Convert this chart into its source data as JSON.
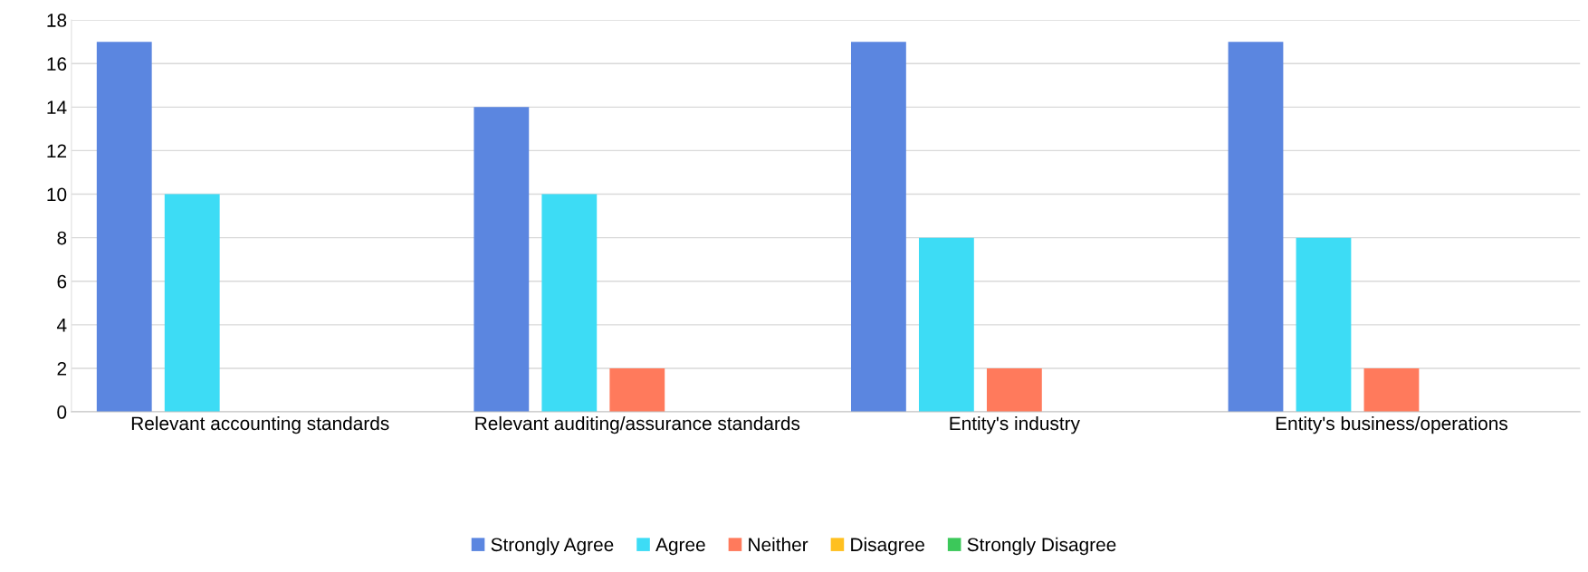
{
  "chart_data": {
    "type": "bar",
    "categories": [
      "Relevant accounting standards",
      "Relevant auditing/assurance standards",
      "Entity's industry",
      "Entity's business/operations"
    ],
    "series": [
      {
        "name": "Strongly Agree",
        "color": "#5b86e0",
        "values": [
          17,
          14,
          17,
          17
        ]
      },
      {
        "name": "Agree",
        "color": "#3ddcf5",
        "values": [
          10,
          10,
          8,
          8
        ]
      },
      {
        "name": "Neither",
        "color": "#ff7a5c",
        "values": [
          0,
          2,
          2,
          2
        ]
      },
      {
        "name": "Disagree",
        "color": "#ffc020",
        "values": [
          0,
          0,
          0,
          0
        ]
      },
      {
        "name": "Strongly Disagree",
        "color": "#3cc85a",
        "values": [
          0,
          0,
          0,
          0
        ]
      }
    ],
    "ylim": [
      0,
      18
    ],
    "yticks": [
      0,
      2,
      4,
      6,
      8,
      10,
      12,
      14,
      16,
      18
    ],
    "grid": "y",
    "legend": "bottom"
  }
}
